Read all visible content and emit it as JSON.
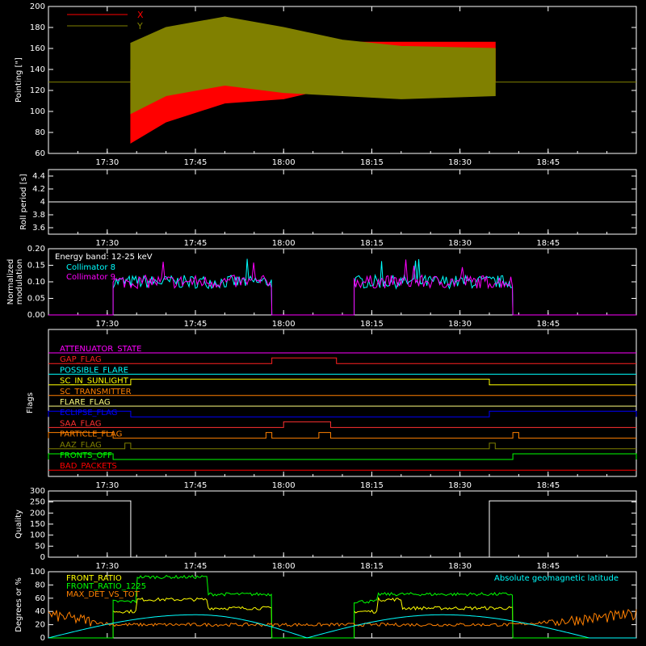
{
  "chart_data": [
    {
      "type": "line",
      "ylabel": "Pointing [\"]",
      "ylim": [
        60,
        200
      ],
      "yticks": [
        60,
        80,
        100,
        120,
        140,
        160,
        180,
        200
      ],
      "xticks": [
        "17:30",
        "17:45",
        "18:00",
        "18:15",
        "18:30",
        "18:45"
      ],
      "series": [
        {
          "name": "X",
          "color": "#ff0000",
          "x": [
            "17:34",
            "17:40",
            "17:50",
            "18:00",
            "18:10",
            "18:20",
            "18:36"
          ],
          "upper": [
            140,
            150,
            160,
            158,
            166,
            166,
            166
          ],
          "lower": [
            70,
            90,
            108,
            112,
            125,
            128,
            128
          ]
        },
        {
          "name": "Y",
          "color": "#808000",
          "x": [
            "17:34",
            "17:40",
            "17:50",
            "18:00",
            "18:10",
            "18:20",
            "18:36"
          ],
          "upper": [
            165,
            180,
            190,
            180,
            168,
            162,
            160
          ],
          "lower": [
            98,
            115,
            125,
            118,
            115,
            112,
            115
          ]
        }
      ],
      "y_baseline": 128,
      "legend": "top-left"
    },
    {
      "type": "line",
      "ylabel": "Roll period [s]",
      "ylim": [
        3.5,
        4.5
      ],
      "yticks": [
        3.6,
        3.8,
        4.0,
        4.2,
        4.4
      ],
      "xticks": [
        "17:30",
        "17:45",
        "18:00",
        "18:15",
        "18:30",
        "18:45"
      ],
      "value": 4.0
    },
    {
      "type": "line",
      "ylabel": "Normalized modulation",
      "ylim": [
        0,
        0.2
      ],
      "yticks": [
        "0.00",
        "0.05",
        "0.10",
        "0.15",
        "0.20"
      ],
      "xticks": [
        "17:30",
        "17:45",
        "18:00",
        "18:15",
        "18:30",
        "18:45"
      ],
      "annotation": "Energy band: 12-25 keV",
      "series": [
        {
          "name": "Collimator 8",
          "color": "#00ffff",
          "segments": [
            [
              "17:31",
              "17:58"
            ],
            [
              "18:12",
              "18:39"
            ]
          ],
          "mean": 0.1
        },
        {
          "name": "Collimator 9",
          "color": "#ff00ff",
          "segments": [
            [
              "17:31",
              "17:58"
            ],
            [
              "18:12",
              "18:39"
            ]
          ],
          "mean": 0.1
        }
      ],
      "legend": "top-left"
    },
    {
      "type": "line",
      "ylabel": "Flags",
      "xticks": [
        "17:30",
        "17:45",
        "18:00",
        "18:15",
        "18:30",
        "18:45"
      ],
      "flags": [
        {
          "name": "ATTENUATOR_STATE",
          "color": "#ff00ff",
          "on": []
        },
        {
          "name": "GAP_FLAG",
          "color": "#ff2020",
          "on": [
            [
              "17:58",
              "18:09"
            ]
          ]
        },
        {
          "name": "POSSIBLE_FLARE",
          "color": "#00ffff",
          "on": []
        },
        {
          "name": "SC_IN_SUNLIGHT",
          "color": "#ffff00",
          "on": [
            [
              "17:34",
              "18:35"
            ]
          ]
        },
        {
          "name": "SC_TRANSMITTER",
          "color": "#ff8000",
          "on": []
        },
        {
          "name": "FLARE_FLAG",
          "color": "#ffff80",
          "on": []
        },
        {
          "name": "ECLIPSE_FLAG",
          "color": "#0000ff",
          "on": [
            [
              "17:20",
              "17:34"
            ],
            [
              "18:35",
              "19:00"
            ]
          ]
        },
        {
          "name": "SAA_FLAG",
          "color": "#ff3030",
          "on": [
            [
              "18:00",
              "18:08"
            ]
          ]
        },
        {
          "name": "PARTICLE_FLAG",
          "color": "#ff8000",
          "on": [
            [
              "17:20",
              "17:31"
            ],
            [
              "17:57",
              "17:58"
            ],
            [
              "18:06",
              "18:08"
            ],
            [
              "18:39",
              "18:40"
            ]
          ]
        },
        {
          "name": "AAZ_FLAG",
          "color": "#808000",
          "on": [
            [
              "17:33",
              "17:34"
            ],
            [
              "18:35",
              "18:36"
            ]
          ]
        },
        {
          "name": "FRONTS_OFF",
          "color": "#00ff00",
          "on": [
            [
              "17:20",
              "17:31"
            ],
            [
              "18:39",
              "19:00"
            ]
          ]
        },
        {
          "name": "BAD_PACKETS",
          "color": "#ff0000",
          "on": []
        }
      ]
    },
    {
      "type": "line",
      "ylabel": "Quality",
      "ylim": [
        0,
        300
      ],
      "yticks": [
        0,
        50,
        100,
        150,
        200,
        250,
        300
      ],
      "xticks": [
        "17:30",
        "17:45",
        "18:00",
        "18:15",
        "18:30",
        "18:45"
      ],
      "series": [
        {
          "name": "",
          "x": [
            "17:20",
            "17:34",
            "17:34",
            "18:35",
            "18:35",
            "19:00"
          ],
          "y": [
            255,
            255,
            0,
            0,
            255,
            255
          ]
        }
      ]
    },
    {
      "type": "line",
      "ylabel": "Degrees or %",
      "ylim": [
        0,
        100
      ],
      "yticks": [
        0,
        20,
        40,
        60,
        80,
        100
      ],
      "annotation": "Absolute geomagnetic latitude",
      "series": [
        {
          "name": "FRONT_RATIO",
          "color": "#ffff00",
          "segments": [
            [
              "17:31",
              "17:58"
            ],
            [
              "18:12",
              "18:39"
            ]
          ],
          "mean": 48
        },
        {
          "name": "FRONT_RATIO_1225",
          "color": "#00ff00",
          "segments": [
            [
              "17:31",
              "17:58"
            ],
            [
              "18:12",
              "18:39"
            ]
          ],
          "mean": 70
        },
        {
          "name": "MAX_DET_VS_TOT",
          "color": "#ff8000",
          "x": [
            "17:20",
            "17:31",
            "17:58",
            "18:12",
            "18:39",
            "19:00"
          ],
          "y": [
            35,
            20,
            20,
            20,
            20,
            35
          ]
        },
        {
          "name": "Absolute geomagnetic latitude",
          "color": "#00ffff",
          "x": [
            "17:20",
            "17:45",
            "18:04",
            "18:27",
            "18:52"
          ],
          "y": [
            0,
            35,
            0,
            35,
            0
          ]
        }
      ],
      "legend": "top-left"
    }
  ]
}
